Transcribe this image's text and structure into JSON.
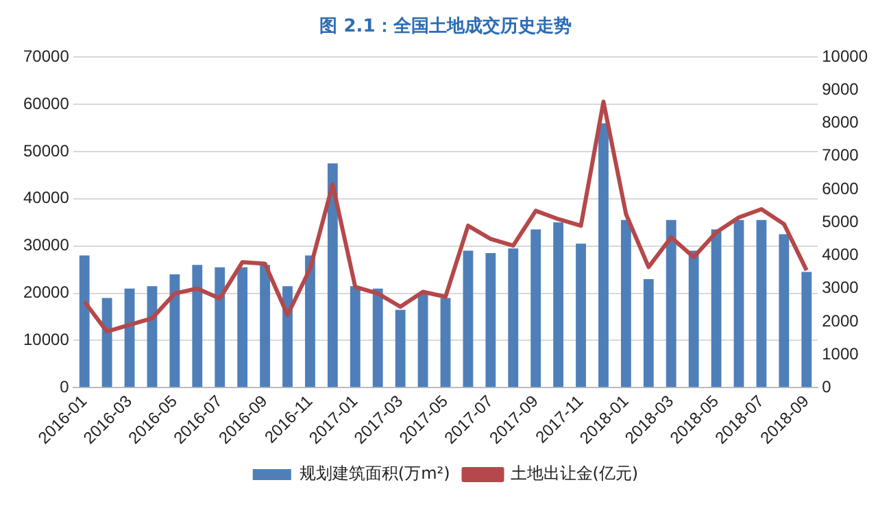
{
  "chart_data": {
    "type": "bar",
    "title": "图 2.1：全国土地成交历史走势",
    "categories": [
      "2016-01",
      null,
      "2016-03",
      null,
      "2016-05",
      null,
      "2016-07",
      null,
      "2016-09",
      null,
      "2016-11",
      null,
      "2017-01",
      null,
      "2017-03",
      null,
      "2017-05",
      null,
      "2017-07",
      null,
      "2017-09",
      null,
      "2017-11",
      null,
      "2018-01",
      null,
      "2018-03",
      null,
      "2018-05",
      null,
      "2018-07",
      null,
      "2018-09"
    ],
    "series": [
      {
        "name": "规划建筑面积(万m²)",
        "color": "#4f7fb8",
        "values": [
          28000,
          19000,
          21000,
          21500,
          24000,
          26000,
          25500,
          25500,
          26000,
          21500,
          28000,
          47500,
          21500,
          21000,
          16500,
          20000,
          19000,
          29000,
          28500,
          29500,
          33500,
          35000,
          30500,
          56000,
          35500,
          23000,
          35500,
          29000,
          33500,
          35500,
          35500,
          32500,
          24500
        ]
      },
      {
        "name": "土地出让金(亿元)",
        "type": "line",
        "axis": "y2",
        "color": "#b5484a",
        "values": [
          2600,
          1700,
          1900,
          2100,
          2850,
          3000,
          2700,
          3800,
          3750,
          2200,
          3600,
          6150,
          3050,
          2850,
          2450,
          2900,
          2750,
          4900,
          4500,
          4300,
          5350,
          5100,
          4900,
          8650,
          5250,
          3650,
          4550,
          3950,
          4700,
          5150,
          5400,
          4950,
          3550
        ]
      }
    ],
    "ylim": [
      0,
      70000
    ],
    "yticks": [
      0,
      10000,
      20000,
      30000,
      40000,
      50000,
      60000,
      70000
    ],
    "y2lim": [
      0,
      10000
    ],
    "y2ticks": [
      0,
      1000,
      2000,
      3000,
      4000,
      5000,
      6000,
      7000,
      8000,
      9000,
      10000
    ],
    "grid": "y",
    "legend": "bottom",
    "marker": "none"
  }
}
